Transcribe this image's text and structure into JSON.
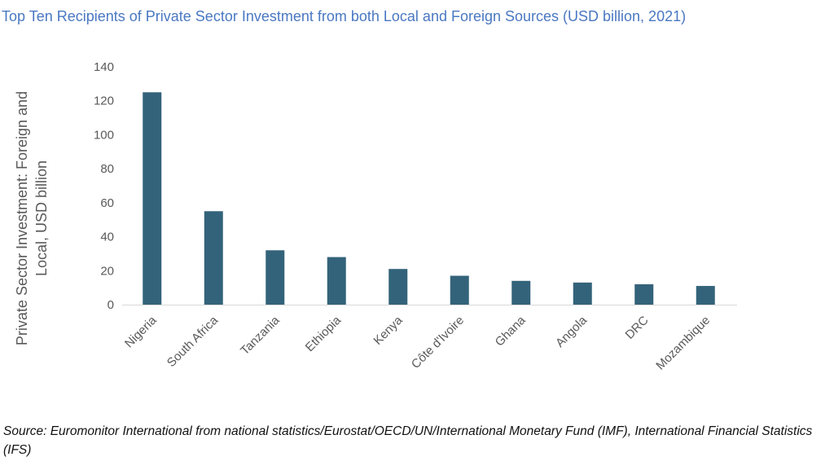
{
  "title": "Top Ten Recipients of Private Sector Investment from both Local and Foreign Sources (USD billion, 2021)",
  "source": "Source: Euromonitor International from national statistics/Eurostat/OECD/UN/International Monetary Fund (IMF), International Financial Statistics (IFS)",
  "colors": {
    "bar": "#33637a",
    "title": "#4a78c2",
    "axis_text": "#595959",
    "axis_line": "#d9d9d9"
  },
  "chart_data": {
    "type": "bar",
    "title": "Top Ten Recipients of Private Sector Investment from both Local and Foreign Sources (USD billion, 2021)",
    "xlabel": "",
    "ylabel_lines": [
      "Private Sector Investment: Foreign and",
      "Local, USD billion"
    ],
    "categories": [
      "Nigeria",
      "South Africa",
      "Tanzania",
      "Ethiopia",
      "Kenya",
      "Côte d'Ivoire",
      "Ghana",
      "Angola",
      "DRC",
      "Mozambique"
    ],
    "values": [
      125,
      55,
      32,
      28,
      21,
      17,
      14,
      13,
      12,
      11
    ],
    "ylim": [
      0,
      140
    ],
    "yticks": [
      0,
      20,
      40,
      60,
      80,
      100,
      120,
      140
    ],
    "grid": false,
    "legend": "none"
  }
}
